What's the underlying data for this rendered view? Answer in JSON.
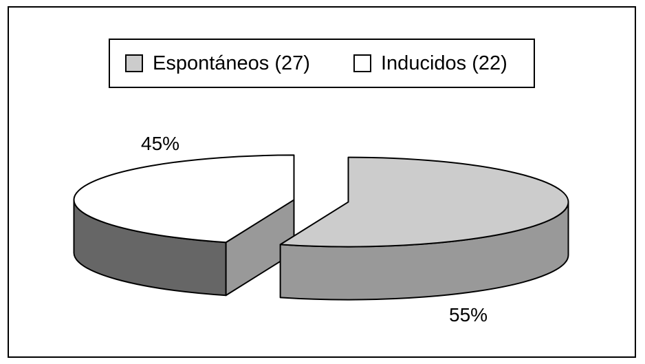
{
  "chart_data": {
    "type": "pie",
    "style": "3d-exploded",
    "slices": [
      {
        "name": "Espontáneos",
        "legend_label": "Espontáneos (27)",
        "count": 27,
        "value": 55,
        "label": "55%",
        "top_color": "#cccccc",
        "side_color": "#999999"
      },
      {
        "name": "Inducidos",
        "legend_label": "Inducidos (22)",
        "count": 22,
        "value": 45,
        "label": "45%",
        "top_color": "#ffffff",
        "side_color": "#666666",
        "inner_side_color": "#999999"
      }
    ],
    "legend": {
      "position": "top",
      "border": true
    }
  }
}
